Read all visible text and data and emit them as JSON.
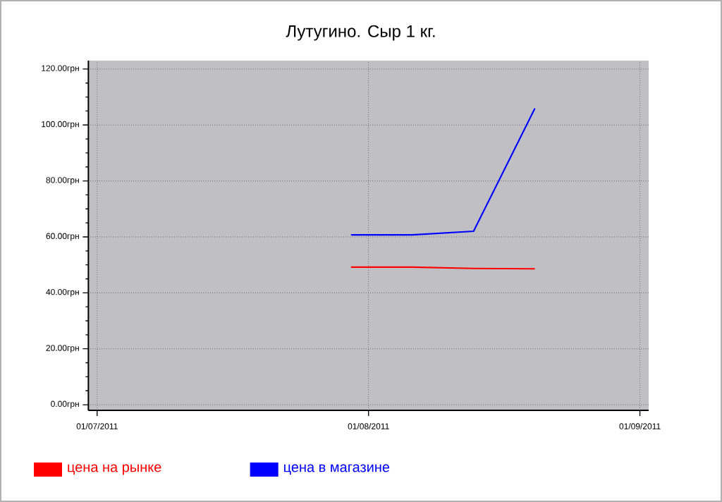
{
  "chart_data": {
    "type": "line",
    "title": "Лутугино. Сыр 1 кг.",
    "x": [
      "2011-07-30",
      "2011-08-06",
      "2011-08-13",
      "2011-08-20"
    ],
    "series": [
      {
        "name": "цена на рынке",
        "color": "#ff0000",
        "values": [
          49.2,
          49.2,
          48.7,
          48.6
        ]
      },
      {
        "name": "цена в магазине",
        "color": "#0000ff",
        "values": [
          60.7,
          60.7,
          62.0,
          105.9
        ]
      }
    ],
    "xlim": [
      "2011-06-30",
      "2011-09-02"
    ],
    "xticks": [
      {
        "value": "2011-07-01",
        "label": "01/07/2011"
      },
      {
        "value": "2011-08-01",
        "label": "01/08/2011"
      },
      {
        "value": "2011-09-01",
        "label": "01/09/2011"
      }
    ],
    "ylim": [
      -2,
      123
    ],
    "yticks": [
      {
        "value": 0,
        "label": "0.00грн"
      },
      {
        "value": 20,
        "label": "20.00грн"
      },
      {
        "value": 40,
        "label": "40.00грн"
      },
      {
        "value": 60,
        "label": "60.00грн"
      },
      {
        "value": 80,
        "label": "80.00грн"
      },
      {
        "value": 100,
        "label": "100.00грн"
      },
      {
        "value": 120,
        "label": "120.00грн"
      }
    ],
    "grid": true,
    "legend": "bottom left",
    "marker": "none",
    "line_style": "solid"
  }
}
